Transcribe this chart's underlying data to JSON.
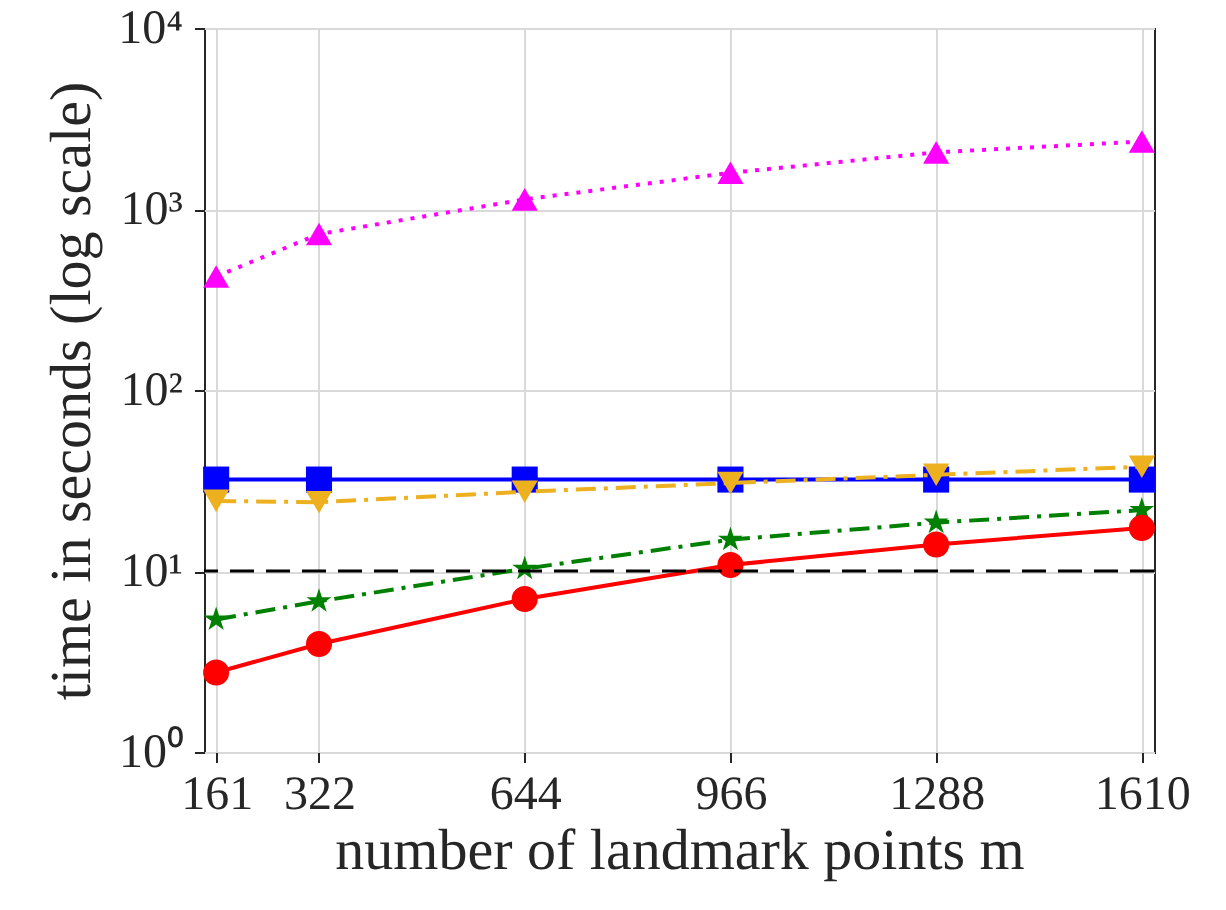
{
  "chart_data": {
    "type": "line",
    "xlabel": "number of landmark points m",
    "ylabel": "time in seconds (log scale)",
    "log": "y",
    "grid": true,
    "x": [
      161,
      322,
      644,
      966,
      1288,
      1610
    ],
    "xlim": [
      142,
      1629
    ],
    "xticks": [
      161,
      322,
      644,
      966,
      1288,
      1610
    ],
    "ylim": [
      1,
      10000
    ],
    "yticks": [
      {
        "value": 1,
        "label": "10⁰"
      },
      {
        "value": 10,
        "label": "10¹"
      },
      {
        "value": 100,
        "label": "10²"
      },
      {
        "value": 1000,
        "label": "10³"
      },
      {
        "value": 10000,
        "label": "10⁴"
      }
    ],
    "series": [
      {
        "color": "#ff00ff",
        "marker": "triangle",
        "line_style": "dotted",
        "values": [
          424,
          727,
          1130,
          1585,
          2055,
          2360
        ]
      },
      {
        "color": "#0000ff",
        "marker": "square",
        "line_style": "solid",
        "values": [
          32,
          32,
          32,
          32,
          32,
          32
        ]
      },
      {
        "color": "#edb120",
        "marker": "triangle-down",
        "line_style": "dashed",
        "values": [
          24.4,
          24,
          27.4,
          30.6,
          34,
          37.7
        ]
      },
      {
        "color": "#008000",
        "marker": "star",
        "line_style": "dashed",
        "values": [
          5.4,
          6.8,
          10.3,
          14.9,
          18.5,
          21.7
        ]
      },
      {
        "color": "#ff0000",
        "marker": "circle",
        "line_style": "solid",
        "values": [
          2.75,
          3.95,
          7.0,
          10.8,
          14.0,
          17.3
        ]
      }
    ],
    "ref_lines": [
      {
        "axis": "y",
        "value": 10,
        "color": "#000000",
        "line_style": "dashed"
      }
    ]
  }
}
